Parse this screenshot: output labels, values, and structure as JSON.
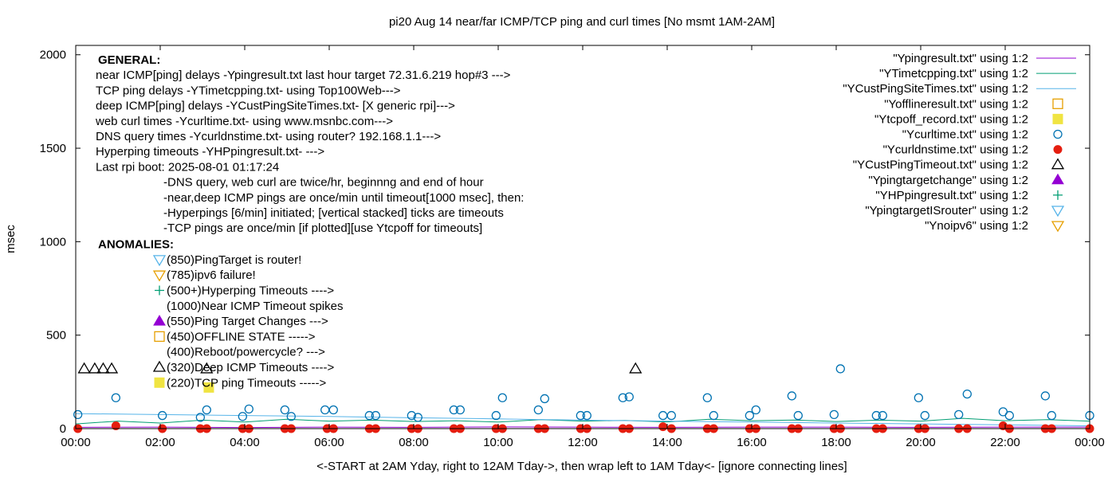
{
  "chart_data": {
    "type": "line",
    "title": "pi20 Aug 14  near/far ICMP/TCP ping and curl times [No msmt 1AM-2AM]",
    "xlabel": "<-START at 2AM Yday, right to 12AM Tday->, then wrap left to 1AM Tday<- [ignore connecting lines]",
    "ylabel": "msec",
    "xlim": [
      0,
      24
    ],
    "ylim": [
      0,
      2050
    ],
    "grid": false,
    "legend_position": "top-right",
    "x_ticks": [
      {
        "value": 0,
        "label": "00:00"
      },
      {
        "value": 2,
        "label": "02:00"
      },
      {
        "value": 4,
        "label": "04:00"
      },
      {
        "value": 6,
        "label": "06:00"
      },
      {
        "value": 8,
        "label": "08:00"
      },
      {
        "value": 10,
        "label": "10:00"
      },
      {
        "value": 12,
        "label": "12:00"
      },
      {
        "value": 14,
        "label": "14:00"
      },
      {
        "value": 16,
        "label": "16:00"
      },
      {
        "value": 18,
        "label": "18:00"
      },
      {
        "value": 20,
        "label": "20:00"
      },
      {
        "value": 22,
        "label": "22:00"
      },
      {
        "value": 24,
        "label": "00:00"
      }
    ],
    "y_ticks": [
      {
        "value": 0,
        "label": "0"
      },
      {
        "value": 500,
        "label": "500"
      },
      {
        "value": 1000,
        "label": "1000"
      },
      {
        "value": 1500,
        "label": "1500"
      },
      {
        "value": 2000,
        "label": "2000"
      }
    ],
    "series": [
      {
        "name": "\"Ypingresult.txt\" using 1:2",
        "style": "line",
        "color": "#9400d3",
        "x": [
          0,
          2,
          4,
          6,
          8,
          10,
          12,
          14,
          16,
          18,
          20,
          22,
          24
        ],
        "y": [
          7,
          8,
          6,
          8,
          7,
          9,
          8,
          7,
          8,
          8,
          7,
          8,
          8
        ]
      },
      {
        "name": "\"YTimetcpping.txt\" using 1:2",
        "style": "line",
        "color": "#009e73",
        "x": [
          0,
          1,
          2,
          3,
          4,
          5,
          6,
          7,
          8,
          9,
          10,
          11,
          12,
          13,
          14,
          15,
          16,
          17,
          18,
          19,
          20,
          21,
          22,
          23,
          24
        ],
        "y": [
          25,
          40,
          30,
          45,
          35,
          50,
          40,
          45,
          38,
          42,
          35,
          48,
          40,
          44,
          36,
          50,
          42,
          46,
          38,
          45,
          40,
          55,
          42,
          48,
          40
        ]
      },
      {
        "name": "\"YCustPingSiteTimes.txt\" using 1:2",
        "style": "line",
        "color": "#56b4e9",
        "x": [
          0,
          2,
          4,
          6,
          8,
          10,
          12,
          14,
          16,
          18,
          20,
          22,
          24
        ],
        "y": [
          80,
          75,
          70,
          65,
          58,
          52,
          45,
          40,
          35,
          30,
          25,
          20,
          15
        ]
      },
      {
        "name": "\"Yofflineresult.txt\" using 1:2",
        "style": "marker",
        "marker": "open-square",
        "color": "#e69f00",
        "x": [],
        "y": []
      },
      {
        "name": "\"Ytcpoff_record.txt\" using 1:2",
        "style": "marker",
        "marker": "filled-square",
        "color": "#f0e442",
        "x": [],
        "y": []
      },
      {
        "name": "\"Ycurltime.txt\" using 1:2",
        "style": "marker",
        "marker": "open-circle",
        "color": "#0072b2",
        "x": [
          0.05,
          0.95,
          2.05,
          2.95,
          3.1,
          3.95,
          4.1,
          4.95,
          5.1,
          5.9,
          6.1,
          6.95,
          7.1,
          7.95,
          8.1,
          8.95,
          9.1,
          9.95,
          10.1,
          10.95,
          11.1,
          11.95,
          12.1,
          12.95,
          13.1,
          13.9,
          14.1,
          14.95,
          15.1,
          15.95,
          16.1,
          16.95,
          17.1,
          17.95,
          18.1,
          18.95,
          19.1,
          19.95,
          20.1,
          20.9,
          21.1,
          21.95,
          22.1,
          22.95,
          23.1,
          24.0
        ],
        "y": [
          75,
          165,
          70,
          60,
          100,
          65,
          105,
          100,
          65,
          100,
          100,
          70,
          70,
          70,
          60,
          100,
          100,
          70,
          165,
          100,
          160,
          70,
          70,
          165,
          170,
          70,
          70,
          165,
          70,
          70,
          100,
          175,
          70,
          75,
          320,
          70,
          70,
          165,
          70,
          75,
          185,
          90,
          70,
          175,
          70,
          70
        ]
      },
      {
        "name": "\"Ycurldnstime.txt\" using 1:2",
        "style": "marker",
        "marker": "filled-circle",
        "color": "#e51e10",
        "x": [
          0.05,
          0.95,
          2.05,
          2.95,
          3.1,
          3.95,
          4.1,
          4.95,
          5.1,
          5.95,
          6.1,
          6.95,
          7.1,
          7.95,
          8.1,
          8.95,
          9.1,
          9.95,
          10.1,
          10.95,
          11.1,
          11.95,
          12.1,
          12.95,
          13.1,
          13.9,
          14.1,
          14.95,
          15.1,
          15.95,
          16.1,
          16.95,
          17.1,
          17.95,
          18.1,
          18.95,
          19.1,
          19.95,
          20.1,
          20.9,
          21.1,
          21.95,
          22.1,
          22.95,
          23.1,
          24.0
        ],
        "y": [
          0,
          15,
          0,
          0,
          0,
          0,
          0,
          0,
          0,
          0,
          0,
          0,
          0,
          0,
          0,
          0,
          0,
          0,
          0,
          0,
          0,
          0,
          0,
          0,
          0,
          10,
          0,
          0,
          0,
          0,
          0,
          0,
          0,
          0,
          0,
          0,
          0,
          0,
          0,
          0,
          0,
          15,
          0,
          0,
          0,
          0
        ]
      },
      {
        "name": "\"YCustPingTimeout.txt\" using 1:2",
        "style": "marker",
        "marker": "open-triangle-up",
        "color": "#000000",
        "x": [
          0.2,
          0.45,
          0.65,
          0.85,
          3.1,
          13.25
        ],
        "y": [
          320,
          320,
          320,
          320,
          320,
          320
        ]
      },
      {
        "name": "\"Ypingtargetchange\" using 1:2",
        "style": "marker",
        "marker": "filled-triangle-up",
        "color": "#9400d3",
        "x": [],
        "y": []
      },
      {
        "name": "\"YHPpingresult.txt\" using 1:2",
        "style": "marker",
        "marker": "plus",
        "color": "#009e73",
        "x": [],
        "y": []
      },
      {
        "name": "\"YpingtargetISrouter\" using 1:2",
        "style": "marker",
        "marker": "open-triangle-down",
        "color": "#56b4e9",
        "x": [],
        "y": []
      },
      {
        "name": "\"Ynoipv6\" using 1:2",
        "style": "marker",
        "marker": "open-triangle-down",
        "color": "#e69f00",
        "x": [],
        "y": []
      }
    ],
    "extra_points": [
      {
        "marker": "filled-square",
        "color": "#f0e442",
        "x": 3.15,
        "y": 220
      }
    ],
    "annotations": {
      "general_header": "GENERAL:",
      "general_lines": [
        "near ICMP[ping] delays -Ypingresult.txt last hour target 72.31.6.219 hop#3 --->",
        "TCP ping delays -YTimetcpping.txt- using Top100Web--->",
        "deep ICMP[ping] delays -YCustPingSiteTimes.txt- [X generic rpi]--->",
        "web curl times -Ycurltime.txt- using www.msnbc.com--->",
        "DNS query times -Ycurldnstime.txt- using router? 192.168.1.1--->",
        "Hyperping timeouts -YHPpingresult.txt- --->",
        "Last rpi boot: 2025-08-01 01:17:24"
      ],
      "notes": [
        "-DNS query, web curl are twice/hr, beginnng and end of hour",
        "-near,deep ICMP pings are once/min until timeout[1000 msec], then:",
        "  -Hyperpings [6/min] initiated; [vertical stacked] ticks are timeouts",
        "-TCP pings are once/min [if plotted][use Ytcpoff for timeouts]"
      ],
      "anomalies_header": "ANOMALIES:",
      "anomalies": [
        {
          "marker": "open-triangle-down",
          "color": "#56b4e9",
          "text": "(850)PingTarget is router!"
        },
        {
          "marker": "open-triangle-down",
          "color": "#e69f00",
          "text": "(785)ipv6 failure!"
        },
        {
          "marker": "plus",
          "color": "#009e73",
          "text": "(500+)Hyperping Timeouts ---->"
        },
        {
          "marker": "none",
          "color": "#000000",
          "text": "(1000)Near ICMP Timeout spikes"
        },
        {
          "marker": "filled-triangle-up",
          "color": "#9400d3",
          "text": "(550)Ping Target Changes --->"
        },
        {
          "marker": "open-square",
          "color": "#e69f00",
          "text": "(450)OFFLINE STATE ----->"
        },
        {
          "marker": "none",
          "color": "#000000",
          "text": "(400)Reboot/powercycle? --->"
        },
        {
          "marker": "open-triangle-up",
          "color": "#000000",
          "text": "(320)Deep ICMP Timeouts ---->"
        },
        {
          "marker": "filled-square",
          "color": "#f0e442",
          "text": "(220)TCP ping Timeouts ----->"
        }
      ]
    }
  }
}
